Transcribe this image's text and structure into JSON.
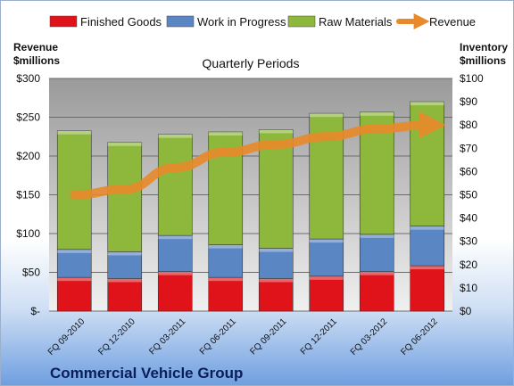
{
  "chart_data": {
    "type": "bar",
    "stacked": true,
    "title": "Quarterly Periods",
    "footer": "Commercial Vehicle Group",
    "categories": [
      "FQ 09-2010",
      "FQ 12-2010",
      "FQ 03-2011",
      "FQ 06-2011",
      "FQ 09-2011",
      "FQ 12-2011",
      "FQ 03-2012",
      "FQ 06-2012"
    ],
    "series": [
      {
        "name": "Finished Goods",
        "color": "#e0131a",
        "axis": "right",
        "values": [
          14.5,
          14,
          17,
          14.5,
          14,
          15,
          17,
          19.5
        ]
      },
      {
        "name": "Work in Progress",
        "color": "#5a86c4",
        "axis": "right",
        "values": [
          12,
          11.5,
          15.5,
          14,
          13,
          16,
          16,
          17
        ]
      },
      {
        "name": "Raw Materials",
        "color": "#8db83b",
        "axis": "right",
        "values": [
          51,
          47,
          43.5,
          48.5,
          51,
          54,
          52.5,
          53.5
        ]
      },
      {
        "name": "Revenue",
        "color": "#e88a2a",
        "axis": "left",
        "type": "line",
        "values": [
          150,
          157,
          185,
          205,
          215,
          225,
          235,
          240
        ]
      }
    ],
    "left_axis": {
      "label_line1": "Revenue",
      "label_line2": "$millions",
      "ylim": [
        0,
        300
      ],
      "ticks": [
        "$-",
        "$50",
        "$100",
        "$150",
        "$200",
        "$250",
        "$300"
      ]
    },
    "right_axis": {
      "label_line1": "Inventory",
      "label_line2": "$millions",
      "ylim": [
        0,
        100
      ],
      "ticks": [
        "$0",
        "$10",
        "$20",
        "$30",
        "$40",
        "$50",
        "$60",
        "$70",
        "$80",
        "$90",
        "$100"
      ]
    },
    "grid": true,
    "legend_position": "top"
  }
}
